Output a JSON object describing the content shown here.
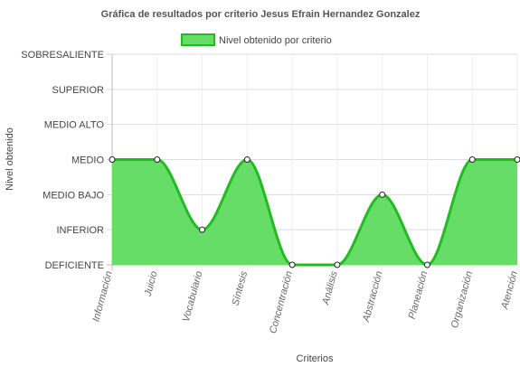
{
  "chart_data": {
    "type": "area",
    "title": "Gráfica de resultados por criterio Jesus Efrain Hernandez Gonzalez",
    "xlabel": "Criterios",
    "ylabel": "Nivel obtenido",
    "y_levels": [
      "DEFICIENTE",
      "INFERIOR",
      "MEDIO BAJO",
      "MEDIO",
      "MEDIO ALTO",
      "SUPERIOR",
      "SOBRESALIENTE"
    ],
    "ylim": [
      0,
      6
    ],
    "categories": [
      "Información",
      "Juicio",
      "Vocabulario",
      "Síntesis",
      "Concentración",
      "Análisis",
      "Abstracción",
      "Planeación",
      "Organización",
      "Atención"
    ],
    "series": [
      {
        "name": "Nivel obtenido por criterio",
        "values": [
          3,
          3,
          1,
          3,
          0,
          0,
          2,
          0,
          3,
          3
        ],
        "fill_color": "#66dd66",
        "line_color": "#22bb22"
      }
    ],
    "legend_position": "top",
    "grid": true
  }
}
